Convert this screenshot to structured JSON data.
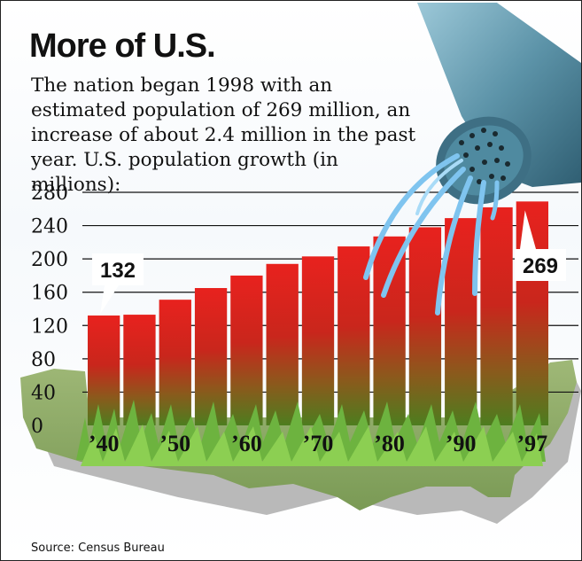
{
  "chart_data": {
    "type": "bar",
    "title": "More of U.S.",
    "subtitle": "The nation began 1998 with an estimated population of 269 million, an increase of about 2.4 million in the past year. U.S. population growth (in millions):",
    "source": "Source: Census Bureau",
    "categories": [
      "1940",
      "1945",
      "1950",
      "1955",
      "1960",
      "1965",
      "1970",
      "1975",
      "1980",
      "1985",
      "1990",
      "1995",
      "1997"
    ],
    "values": [
      132,
      133,
      151,
      165,
      180,
      194,
      203,
      215,
      227,
      238,
      249,
      262,
      269
    ],
    "x_tick_labels": [
      {
        "index": 0,
        "label": "’40"
      },
      {
        "index": 2,
        "label": "’50"
      },
      {
        "index": 4,
        "label": "’60"
      },
      {
        "index": 6,
        "label": "’70"
      },
      {
        "index": 8,
        "label": "’80"
      },
      {
        "index": 10,
        "label": "’90"
      },
      {
        "index": 12,
        "label": "’97"
      }
    ],
    "y_ticks": [
      0,
      40,
      80,
      120,
      160,
      200,
      240,
      280
    ],
    "ylim": [
      0,
      280
    ],
    "data_labels": [
      {
        "index": 0,
        "label": "132"
      },
      {
        "index": 12,
        "label": "269"
      }
    ],
    "grid": true,
    "colors": {
      "bar_top": "#e01b1b",
      "bar_bottom": "#5a8a1f",
      "grass": "#7cc242",
      "map": "#8fa86b",
      "map_shadow": "#b5b5b5",
      "water": "#7fc4ef",
      "can": "#5c93a8",
      "background_sky": "#ffffff"
    },
    "decorations": [
      "us-map-silhouette",
      "grass",
      "watering-can-icon",
      "water-streams"
    ]
  }
}
